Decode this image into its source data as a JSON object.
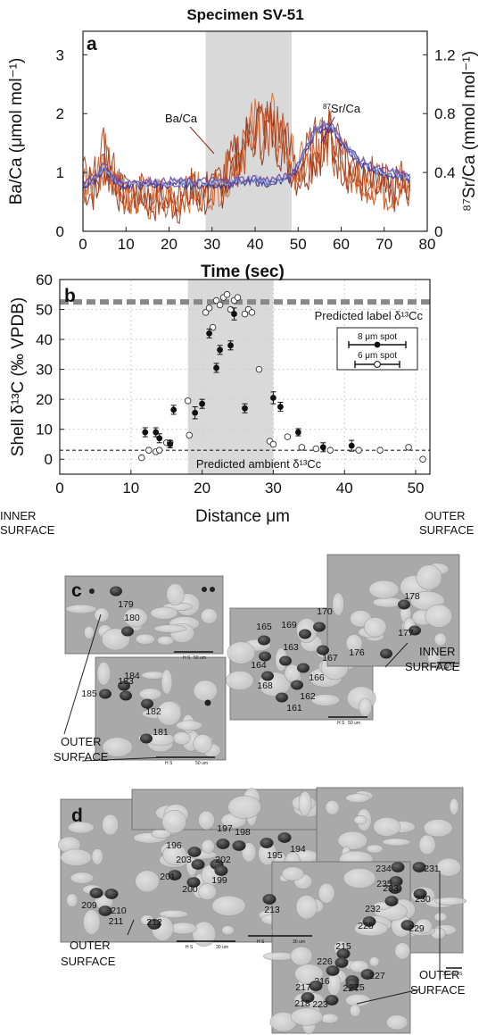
{
  "figure": {
    "title": "Specimen SV-51",
    "panel_a": "a",
    "panel_b": "b",
    "panel_c": "c",
    "panel_d": "d"
  },
  "chart_data": [
    {
      "type": "line",
      "panel": "a",
      "xlabel": "Time (sec)",
      "ylabel_left": "Ba/Ca (μmol mol⁻¹)",
      "ylabel_right": "⁸⁷Sr/Ca (mmol mol⁻¹)",
      "xlim": [
        0,
        80
      ],
      "ylim_left": [
        0,
        3.4
      ],
      "ylim_right": [
        0,
        1.36
      ],
      "x_ticks": [
        "0",
        "10",
        "20",
        "30",
        "40",
        "50",
        "60",
        "70",
        "80"
      ],
      "y_ticks_left": [
        "0",
        "1",
        "2",
        "3"
      ],
      "y_ticks_right": [
        "0",
        "0.4",
        "0.8",
        "1.2"
      ],
      "highlight_x": [
        28.5,
        48.5
      ],
      "annotations": [
        {
          "text": "Ba/Ca",
          "x": 33,
          "y": 1.9
        },
        {
          "text": "87Sr/Ca",
          "sup": "87",
          "rest": "Sr/Ca",
          "x": 50,
          "y": 2.05
        }
      ],
      "series": [
        {
          "name": "Ba/Ca",
          "axis": "left",
          "color": "#a23b18",
          "x": [
            0,
            2,
            4,
            5,
            6,
            8,
            10,
            12,
            14,
            16,
            18,
            20,
            22,
            24,
            26,
            28,
            30,
            32,
            34,
            36,
            38,
            40,
            42,
            44,
            46,
            48,
            50,
            52,
            54,
            56,
            58,
            60,
            62,
            64,
            66,
            68,
            70,
            72,
            74,
            76
          ],
          "y": [
            0.9,
            0.7,
            1.0,
            1.3,
            1.1,
            0.8,
            0.6,
            0.6,
            0.7,
            0.5,
            0.6,
            0.6,
            0.5,
            0.6,
            0.7,
            0.6,
            0.7,
            0.8,
            1.0,
            1.3,
            1.5,
            1.8,
            1.7,
            1.8,
            1.6,
            1.3,
            1.0,
            1.2,
            1.4,
            1.6,
            1.5,
            1.3,
            1.1,
            0.9,
            0.9,
            0.8,
            0.7,
            0.7,
            0.8,
            0.6
          ]
        },
        {
          "name": "87Sr/Ca",
          "axis": "right",
          "color": "#4a2d8c",
          "x": [
            0,
            2,
            4,
            5,
            6,
            8,
            10,
            12,
            14,
            16,
            18,
            20,
            22,
            24,
            26,
            28,
            30,
            32,
            34,
            36,
            38,
            40,
            42,
            44,
            46,
            48,
            50,
            52,
            54,
            56,
            58,
            60,
            62,
            64,
            66,
            68,
            70,
            72,
            74,
            76
          ],
          "y": [
            0.32,
            0.34,
            0.4,
            0.45,
            0.4,
            0.33,
            0.32,
            0.33,
            0.32,
            0.33,
            0.32,
            0.33,
            0.33,
            0.32,
            0.33,
            0.33,
            0.33,
            0.33,
            0.33,
            0.34,
            0.34,
            0.35,
            0.34,
            0.34,
            0.35,
            0.36,
            0.45,
            0.58,
            0.68,
            0.72,
            0.7,
            0.62,
            0.55,
            0.48,
            0.45,
            0.42,
            0.4,
            0.39,
            0.38,
            0.36
          ]
        }
      ]
    },
    {
      "type": "scatter",
      "panel": "b",
      "xlabel": "Distance μm",
      "ylabel": "Shell δ¹³C (‰ VPDB)",
      "xlim": [
        0,
        52
      ],
      "ylim": [
        -5,
        60
      ],
      "x_ticks": [
        "0",
        "10",
        "20",
        "30",
        "40",
        "50"
      ],
      "y_ticks": [
        "0",
        "10",
        "20",
        "30",
        "40",
        "50",
        "60"
      ],
      "highlight_x": [
        18,
        30
      ],
      "x_end_labels": {
        "left": [
          "INNER",
          "SURFACE"
        ],
        "right": [
          "OUTER",
          "SURFACE"
        ]
      },
      "reference_lines": [
        {
          "label": "Predicted label δ¹³Cc",
          "y": 52.5,
          "style": "thick-dashed",
          "color": "#888888"
        },
        {
          "label": "Predicted ambient δ¹³Cc",
          "y": 3,
          "style": "dashed",
          "color": "#222222"
        }
      ],
      "legend": {
        "position": "right",
        "items": [
          {
            "label": "8 μm spot",
            "marker": "filled"
          },
          {
            "label": "6 μm spot",
            "marker": "open"
          }
        ]
      },
      "series": [
        {
          "name": "8 μm spot",
          "marker": "filled",
          "x": [
            12,
            13.5,
            14,
            15.5,
            16,
            19,
            20,
            21,
            22,
            22.5,
            24,
            24.5,
            26,
            30,
            31,
            33.5,
            37,
            41
          ],
          "y": [
            9,
            9,
            7,
            5,
            16.5,
            15.5,
            18.5,
            42,
            30.5,
            36.5,
            38,
            48.5,
            17,
            20.5,
            17.5,
            9,
            4,
            4.5
          ],
          "err": [
            1.5,
            1.5,
            1.5,
            1.2,
            1.5,
            2,
            1.5,
            1.5,
            1.5,
            1.5,
            1.5,
            2,
            1.5,
            2,
            1.5,
            1.2,
            1.5,
            1.8
          ]
        },
        {
          "name": "6 μm spot",
          "marker": "open",
          "x": [
            11.5,
            12.5,
            13.5,
            14,
            15,
            15.5,
            18,
            18.2,
            20.5,
            21,
            21.5,
            22,
            22.5,
            23,
            23.5,
            24,
            24.5,
            25,
            26,
            26.5,
            27,
            28,
            29.5,
            30,
            32,
            34,
            36,
            38,
            42,
            45,
            49,
            51
          ],
          "y": [
            0.5,
            3,
            2.5,
            3,
            5.5,
            5.5,
            19.5,
            8,
            49,
            50.5,
            44,
            53,
            51.5,
            54,
            55,
            50,
            53,
            54,
            48.5,
            50,
            49,
            30,
            6,
            5,
            7.5,
            4,
            3.5,
            3,
            3,
            3,
            4,
            0
          ]
        }
      ]
    }
  ],
  "panel_c": {
    "labels": {
      "outer": [
        "OUTER",
        "SURFACE"
      ],
      "inner": [
        "INNER",
        "SURFACE"
      ]
    },
    "scale_text": "50 um",
    "scale_prefix": "H S",
    "spots": [
      "179",
      "180",
      "184",
      "185",
      "183",
      "182",
      "181",
      "165",
      "169",
      "170",
      "164",
      "163",
      "167",
      "166",
      "168",
      "162",
      "161",
      "178",
      "177",
      "176"
    ]
  },
  "panel_d": {
    "labels": {
      "outer_left": [
        "OUTER",
        "SURFACE"
      ],
      "outer_right": [
        "OUTER",
        "SURFACE"
      ]
    },
    "scale_text": "30 um",
    "scale_prefix": "H S",
    "spots": [
      "197",
      "198",
      "196",
      "195",
      "194",
      "203",
      "202",
      "201",
      "200",
      "199",
      "209",
      "210",
      "211",
      "212",
      "213",
      "234",
      "231",
      "235",
      "233",
      "232",
      "230",
      "228",
      "229",
      "215",
      "226",
      "216",
      "217",
      "224",
      "227",
      "225",
      "218",
      "223"
    ]
  },
  "colors": {
    "ba": "#a23b18",
    "sr": "#4a2d8c",
    "sr_light": "#7fb6e0",
    "highlight": "#d9d9d9",
    "label_line": "#888888"
  }
}
